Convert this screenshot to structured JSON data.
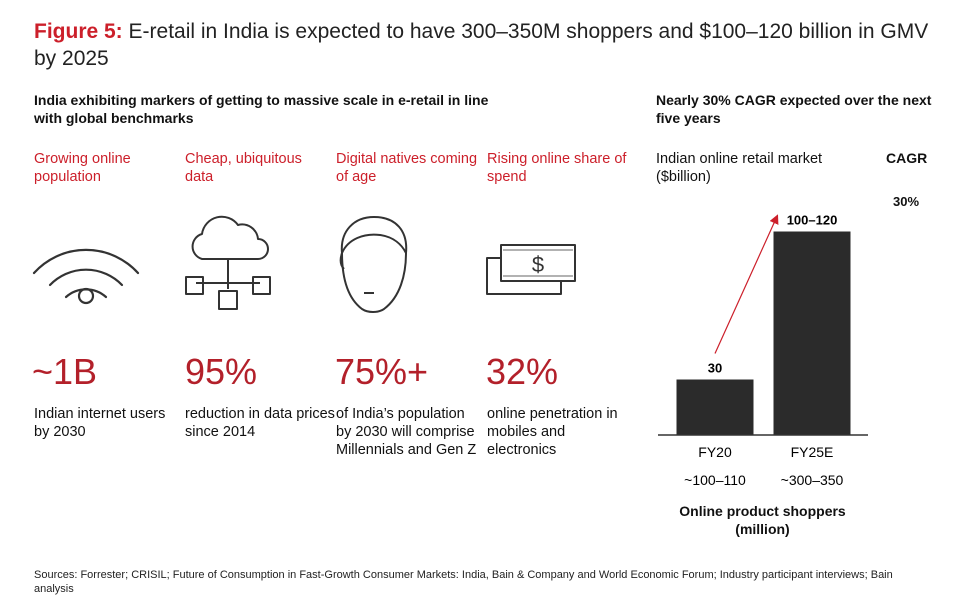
{
  "header": {
    "figure_label": "Figure 5:",
    "title": "E-retail in India is expected to have 300–350M shoppers and $100–120 billion in GMV by 2025"
  },
  "left": {
    "subtitle": "India exhibiting markers of getting to massive scale in e-retail in line with global benchmarks",
    "markers": [
      {
        "label": "Growing online population",
        "icon": "wifi-icon",
        "value": "~1B",
        "desc": "Indian internet users by 2030"
      },
      {
        "label": "Cheap, ubiquitous data",
        "icon": "cloud-network-icon",
        "value": "95%",
        "desc": "reduction in data prices since 2014"
      },
      {
        "label": "Digital natives coming of age",
        "icon": "person-face-icon",
        "value": "75%+",
        "desc": "of India’s population by 2030 will comprise Millennials and Gen Z"
      },
      {
        "label": "Rising online share of spend",
        "icon": "dollar-bills-icon",
        "value": "32%",
        "desc": "online penetration in mobiles and electronics"
      }
    ]
  },
  "right": {
    "subtitle": "Nearly 30% CAGR expected over the next five years",
    "market_label": "Indian online retail market ($billion)",
    "cagr_header": "CAGR",
    "cagr_value": "30%",
    "shoppers_label": "Online product shoppers (million)"
  },
  "chart_data": {
    "type": "bar",
    "title": "Indian online retail market ($billion)",
    "categories": [
      "FY20",
      "FY25E"
    ],
    "values": [
      30,
      110
    ],
    "value_labels": [
      "30",
      "100–120"
    ],
    "secondary_labels": [
      "~100–110",
      "~300–350"
    ],
    "secondary_title": "Online product shoppers (million)",
    "cagr": "30%",
    "ylim": [
      0,
      120
    ]
  },
  "footer": {
    "source": "Sources: Forrester; CRISIL; Future of Consumption in Fast-Growth Consumer Markets: India, Bain & Company and World Economic Forum; Industry participant interviews; Bain analysis"
  },
  "colors": {
    "accent": "#cc1f2a",
    "bar": "#2b2b2b",
    "icon": "#333333"
  }
}
